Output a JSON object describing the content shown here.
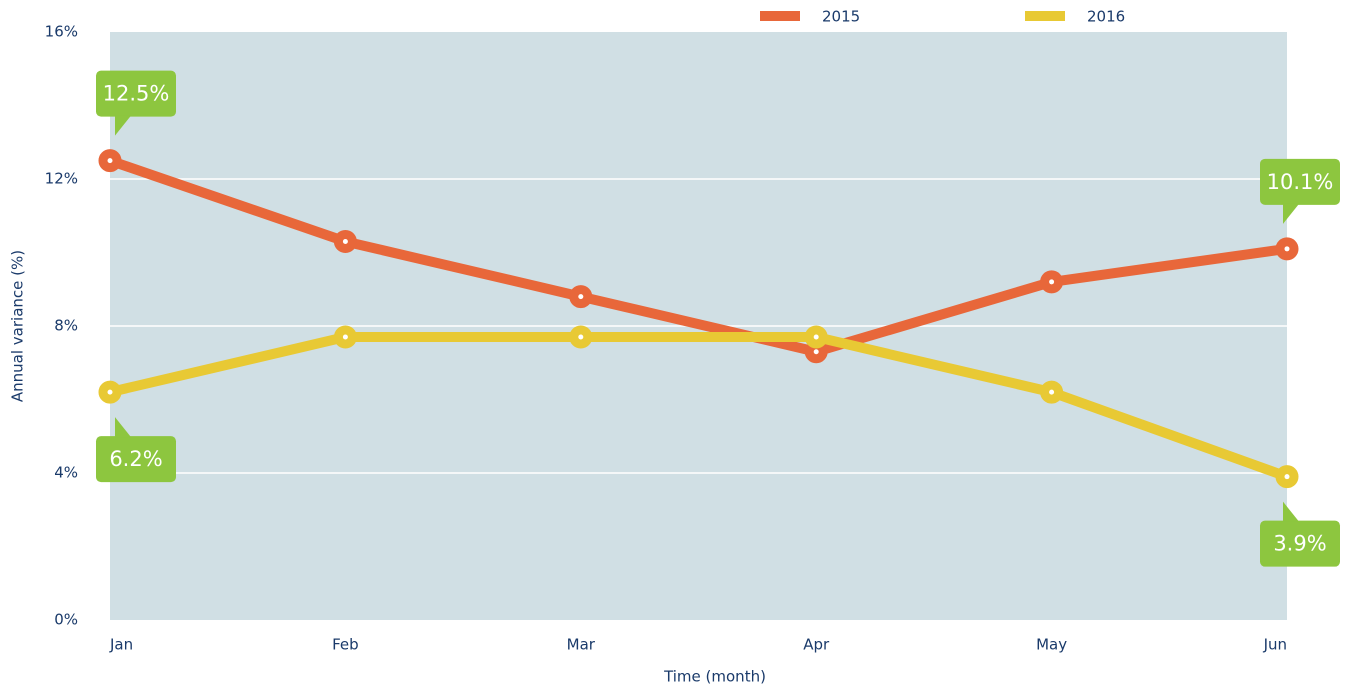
{
  "chart_data": {
    "type": "line",
    "y_label": "Annual variance (%)",
    "x_label": "Time (month)",
    "categories": [
      "Jan",
      "Feb",
      "Mar",
      "Apr",
      "May",
      "Jun"
    ],
    "series": [
      {
        "name": "2015",
        "color": "#e8673a",
        "values": [
          12.5,
          10.3,
          8.8,
          7.3,
          9.2,
          10.1
        ],
        "value_labels": [
          "12.5%",
          null,
          null,
          null,
          null,
          "10.1%"
        ]
      },
      {
        "name": "2016",
        "color": "#e8c934",
        "values": [
          6.2,
          7.7,
          7.7,
          7.7,
          6.2,
          3.9
        ],
        "value_labels": [
          "6.2%",
          null,
          null,
          null,
          null,
          "3.9%"
        ]
      }
    ],
    "ylim": [
      0,
      16
    ],
    "yticks": [
      {
        "value": 0,
        "label": "0%"
      },
      {
        "value": 4,
        "label": "4%"
      },
      {
        "value": 8,
        "label": "8%"
      },
      {
        "value": 12,
        "label": "12%"
      },
      {
        "value": 16,
        "label": "16%"
      }
    ],
    "grid": true,
    "legend": "top",
    "plot_background": "#d0dfe4",
    "label_color": "#8dc63f"
  }
}
